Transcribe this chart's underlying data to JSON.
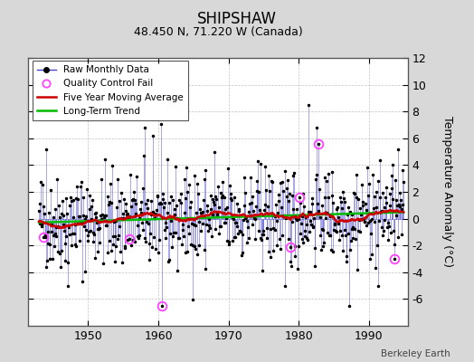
{
  "title": "SHIPSHAW",
  "subtitle": "48.450 N, 71.220 W (Canada)",
  "ylabel": "Temperature Anomaly (°C)",
  "xlabel_credit": "Berkeley Earth",
  "ylim": [
    -8,
    12
  ],
  "yticks": [
    -6,
    -4,
    -2,
    0,
    2,
    4,
    6,
    8,
    10,
    12
  ],
  "xlim": [
    1941.5,
    1995.5
  ],
  "xticks": [
    1950,
    1960,
    1970,
    1980,
    1990
  ],
  "bg_color": "#d8d8d8",
  "plot_bg_color": "#ffffff",
  "line_color": "#4444cc",
  "ma_color": "#cc0000",
  "trend_color": "#00bb00",
  "qc_color": "#ff44ff",
  "seed": 42,
  "start_year": 1943,
  "end_year": 1994
}
